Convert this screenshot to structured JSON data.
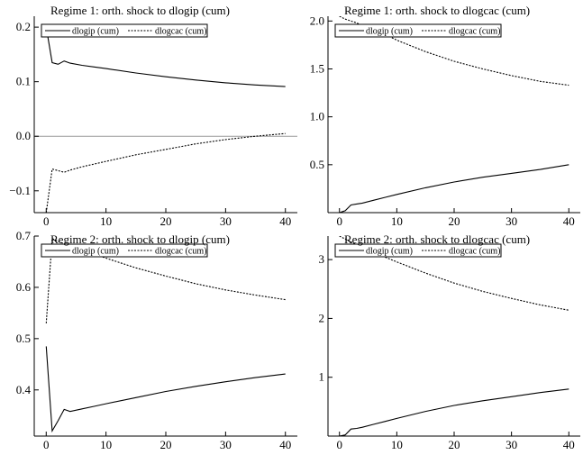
{
  "chart_data": [
    {
      "type": "line",
      "title": "Regime 1: orth. shock to dlogip (cum)",
      "xlim": [
        -2,
        42
      ],
      "ylim": [
        -0.14,
        0.22
      ],
      "xticks": [
        0,
        10,
        20,
        30,
        40
      ],
      "yticks": [
        -0.1,
        0.0,
        0.1,
        0.2
      ],
      "ytick_labels": [
        "−0.1",
        "0.0",
        "0.1",
        "0.2"
      ],
      "zero_line": true,
      "legend": "top-left",
      "series": [
        {
          "name": "dlogip (cum)",
          "style": "solid",
          "x": [
            0,
            1,
            2,
            3,
            4,
            6,
            8,
            10,
            15,
            20,
            25,
            30,
            35,
            40
          ],
          "values": [
            0.2,
            0.135,
            0.132,
            0.138,
            0.134,
            0.13,
            0.127,
            0.124,
            0.116,
            0.109,
            0.103,
            0.098,
            0.094,
            0.091
          ]
        },
        {
          "name": "dlogcac (cum)",
          "style": "dashed",
          "x": [
            0,
            1,
            2,
            3,
            4,
            6,
            8,
            10,
            15,
            20,
            25,
            30,
            35,
            40
          ],
          "values": [
            -0.14,
            -0.06,
            -0.063,
            -0.066,
            -0.062,
            -0.056,
            -0.051,
            -0.046,
            -0.034,
            -0.024,
            -0.014,
            -0.006,
            0.0,
            0.005
          ]
        }
      ]
    },
    {
      "type": "line",
      "title": "Regime 1: orth. shock to dlogcac (cum)",
      "xlim": [
        -2,
        42
      ],
      "ylim": [
        0.0,
        2.05
      ],
      "xticks": [
        0,
        10,
        20,
        30,
        40
      ],
      "yticks": [
        0.5,
        1.0,
        1.5,
        2.0
      ],
      "ytick_labels": [
        "0.5",
        "1.0",
        "1.5",
        "2.0"
      ],
      "zero_line": false,
      "legend": "top-left",
      "series": [
        {
          "name": "dlogip (cum)",
          "style": "solid",
          "x": [
            0,
            1,
            2,
            3,
            4,
            6,
            8,
            10,
            15,
            20,
            25,
            30,
            35,
            40
          ],
          "values": [
            0.0,
            0.02,
            0.08,
            0.09,
            0.1,
            0.13,
            0.16,
            0.19,
            0.26,
            0.32,
            0.37,
            0.41,
            0.45,
            0.5
          ]
        },
        {
          "name": "dlogcac (cum)",
          "style": "dashed",
          "x": [
            0,
            1,
            2,
            3,
            4,
            6,
            8,
            10,
            15,
            20,
            25,
            30,
            35,
            40
          ],
          "values": [
            2.05,
            2.02,
            2.0,
            1.98,
            1.95,
            1.9,
            1.86,
            1.8,
            1.68,
            1.58,
            1.5,
            1.43,
            1.37,
            1.33
          ]
        }
      ]
    },
    {
      "type": "line",
      "title": "Regime 2: orth. shock to dlogip (cum)",
      "xlim": [
        -2,
        42
      ],
      "ylim": [
        0.31,
        0.7
      ],
      "xticks": [
        0,
        10,
        20,
        30,
        40
      ],
      "yticks": [
        0.4,
        0.5,
        0.6,
        0.7
      ],
      "ytick_labels": [
        "0.4",
        "0.5",
        "0.6",
        "0.7"
      ],
      "zero_line": false,
      "legend": "top-left",
      "series": [
        {
          "name": "dlogip (cum)",
          "style": "solid",
          "x": [
            0,
            1,
            2,
            3,
            4,
            6,
            8,
            10,
            15,
            20,
            25,
            30,
            35,
            40
          ],
          "values": [
            0.485,
            0.32,
            0.34,
            0.362,
            0.358,
            0.363,
            0.368,
            0.373,
            0.385,
            0.397,
            0.407,
            0.416,
            0.424,
            0.431
          ]
        },
        {
          "name": "dlogcac (cum)",
          "style": "dashed",
          "x": [
            0,
            1,
            2,
            3,
            4,
            6,
            8,
            10,
            15,
            20,
            25,
            30,
            35,
            40
          ],
          "values": [
            0.53,
            0.695,
            0.69,
            0.685,
            0.68,
            0.672,
            0.665,
            0.657,
            0.638,
            0.622,
            0.607,
            0.595,
            0.585,
            0.576
          ]
        }
      ]
    },
    {
      "type": "line",
      "title": "Regime 2: orth. shock to dlogcac (cum)",
      "xlim": [
        -2,
        42
      ],
      "ylim": [
        0.0,
        3.4
      ],
      "xticks": [
        0,
        10,
        20,
        30,
        40
      ],
      "yticks": [
        1,
        2,
        3
      ],
      "ytick_labels": [
        "1",
        "2",
        "3"
      ],
      "zero_line": false,
      "legend": "top-left",
      "series": [
        {
          "name": "dlogip (cum)",
          "style": "solid",
          "x": [
            0,
            1,
            2,
            3,
            4,
            6,
            8,
            10,
            15,
            20,
            25,
            30,
            35,
            40
          ],
          "values": [
            0.0,
            0.02,
            0.12,
            0.13,
            0.15,
            0.2,
            0.25,
            0.3,
            0.42,
            0.52,
            0.6,
            0.67,
            0.74,
            0.8
          ]
        },
        {
          "name": "dlogcac (cum)",
          "style": "dashed",
          "x": [
            0,
            1,
            2,
            3,
            4,
            6,
            8,
            10,
            15,
            20,
            25,
            30,
            35,
            40
          ],
          "values": [
            3.4,
            3.35,
            3.3,
            3.25,
            3.2,
            3.12,
            3.04,
            2.96,
            2.77,
            2.6,
            2.46,
            2.34,
            2.23,
            2.14
          ]
        }
      ]
    }
  ]
}
